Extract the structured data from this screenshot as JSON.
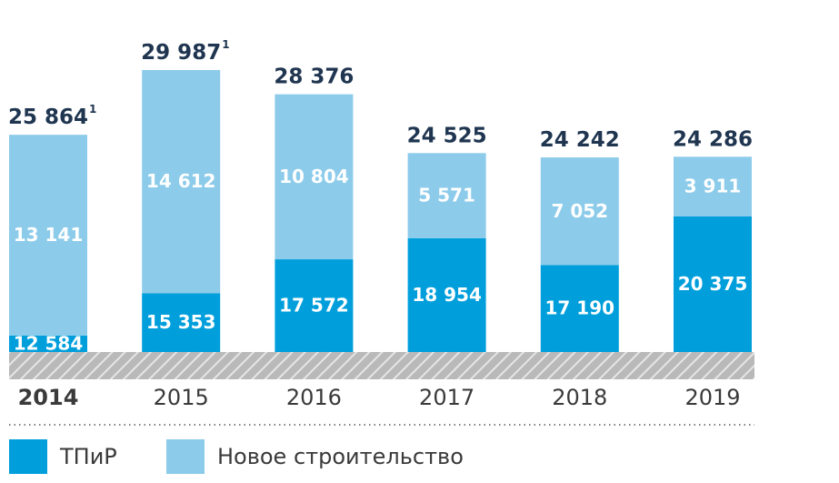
{
  "colors": {
    "tpir": "#009fdc",
    "new_construction": "#8ccbea",
    "highlight_year": "#0a8fd6",
    "year_text": "#3a3a3a",
    "total_text": "#1f3550",
    "hatch_bg": "#b9b9b9",
    "hatch_line": "#e6e6e6"
  },
  "chart_data": {
    "type": "bar",
    "stacked": true,
    "categories": [
      "2014",
      "2015",
      "2016",
      "2017",
      "2018",
      "2019"
    ],
    "highlighted_category": "2014",
    "series": [
      {
        "name": "ТПиР",
        "values": [
          12584,
          15353,
          17572,
          18954,
          17190,
          20375
        ],
        "labels": [
          "12 584",
          "15 353",
          "17 572",
          "18 954",
          "17 190",
          "20 375"
        ]
      },
      {
        "name": "Новое строительство",
        "values": [
          13141,
          14612,
          10804,
          5571,
          7052,
          3911
        ],
        "labels": [
          "13 141",
          "14 612",
          "10 804",
          "5 571",
          "7 052",
          "3 911"
        ]
      }
    ],
    "totals": [
      "25 864",
      "29 987",
      "28 376",
      "24 525",
      "24 242",
      "24 286"
    ],
    "total_notes": [
      "1",
      "1",
      "",
      "",
      "",
      ""
    ],
    "axis_break": true,
    "ylim_visible": [
      11500,
      30500
    ],
    "grid": false,
    "legend_position": "bottom-left"
  },
  "legend": {
    "items": [
      {
        "label": "ТПиР",
        "color_key": "tpir"
      },
      {
        "label": "Новое строительство",
        "color_key": "new_construction"
      }
    ]
  }
}
